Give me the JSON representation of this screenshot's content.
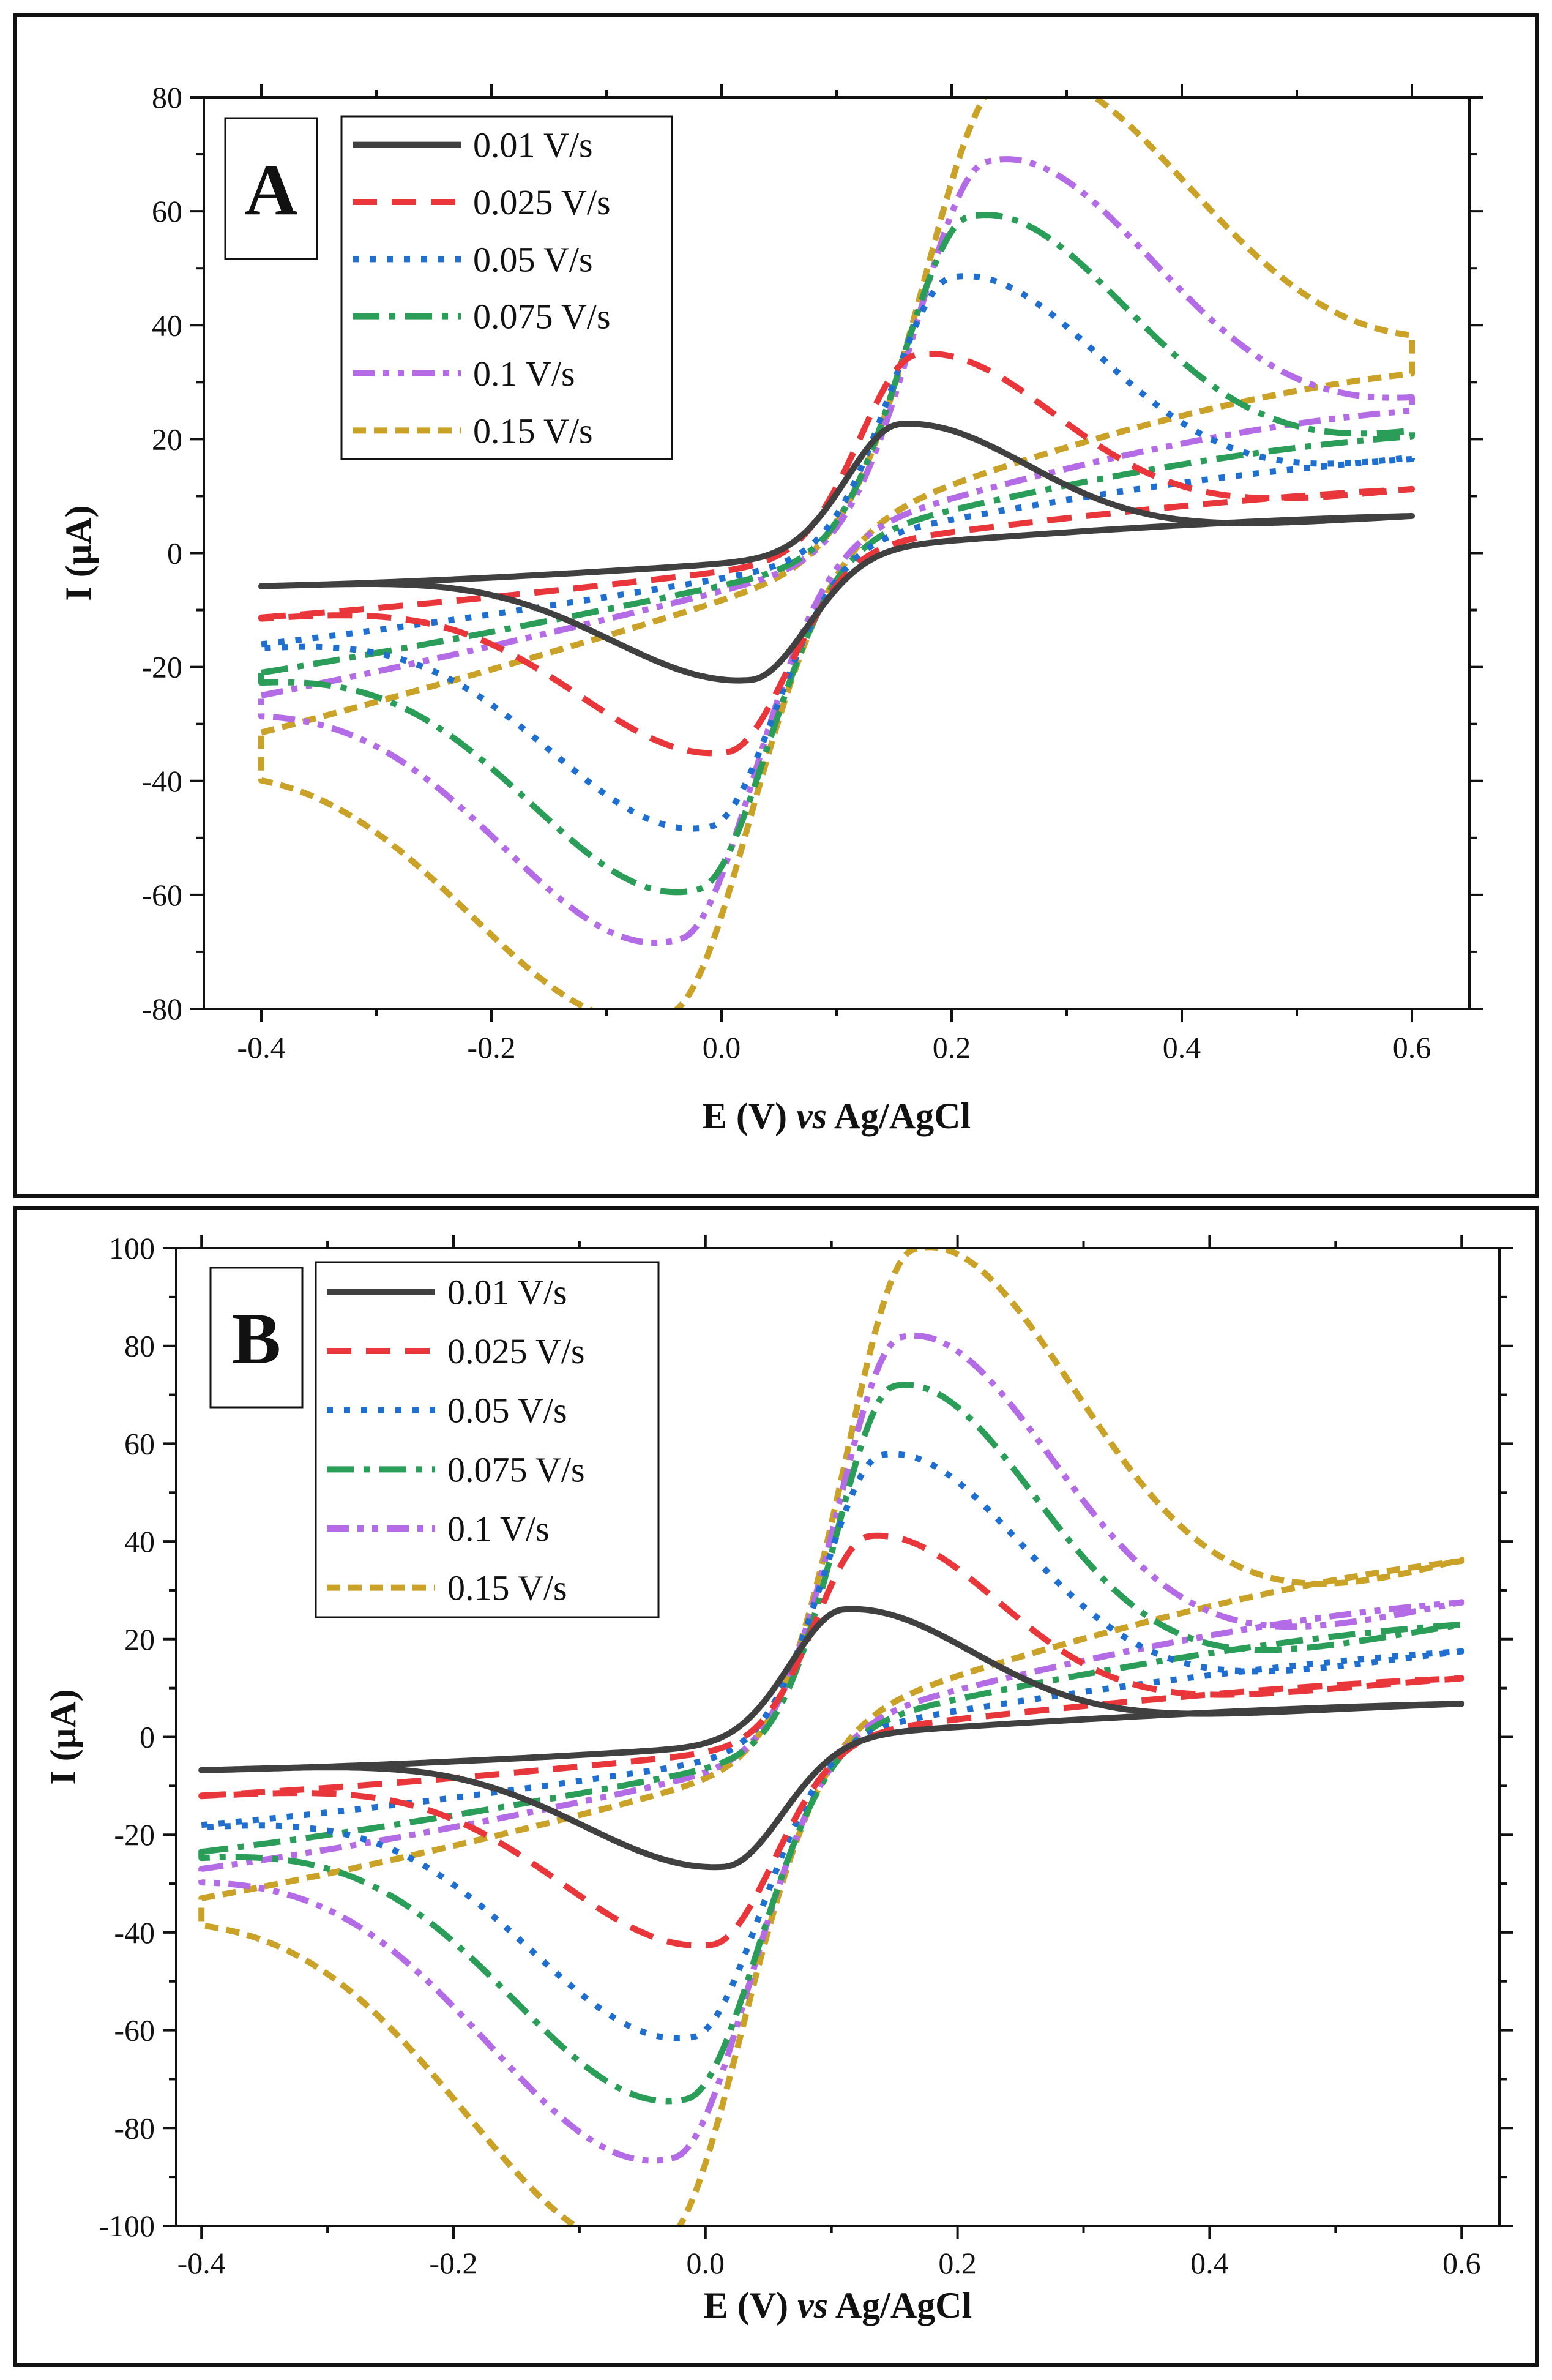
{
  "chart_data": [
    {
      "type": "line",
      "panel_label": "A",
      "xlabel": "E (V) vs Ag/AgCl",
      "xlabel_parts": [
        "E (V) ",
        "vs",
        " Ag/AgCl"
      ],
      "ylabel": "I (µA)",
      "xlim": [
        -0.45,
        0.65
      ],
      "ylim": [
        -80,
        80
      ],
      "xticks": [
        -0.4,
        -0.2,
        0.0,
        0.2,
        0.4,
        0.6
      ],
      "xtick_labels": [
        "-0.4",
        "-0.2",
        "0.0",
        "0.2",
        "0.4",
        "0.6"
      ],
      "yticks": [
        -80,
        -60,
        -40,
        -20,
        0,
        20,
        40,
        60,
        80
      ],
      "ytick_labels": [
        "-80",
        "-60",
        "-40",
        "-20",
        "0",
        "20",
        "40",
        "60",
        "80"
      ],
      "grid": false,
      "legend_position": "top-left",
      "series": [
        {
          "name": "0.01 V/s",
          "color": "#404040",
          "dash": "solid",
          "start": -5.8,
          "end": 6.5,
          "anodic": {
            "x": 0.155,
            "y": 22.3,
            "w": 0.065
          },
          "cathodic": {
            "x": 0.025,
            "y": -21.8,
            "w": 0.07
          },
          "fwd_base": [
            -5.8,
            -4.3,
            2.8,
            6.5
          ],
          "rev_base": [
            6.5,
            5.0,
            -3.4,
            -5.8
          ]
        },
        {
          "name": "0.025 V/s",
          "color": "#e8363a",
          "dash": "dash",
          "start": -11.3,
          "end": 11.2,
          "anodic": {
            "x": 0.17,
            "y": 34,
            "w": 0.07
          },
          "cathodic": {
            "x": 0.005,
            "y": -33.5,
            "w": 0.075
          },
          "fwd_base": [
            -11.3,
            -6.3,
            4.0,
            11.2
          ],
          "rev_base": [
            11.2,
            8.0,
            -5.0,
            -11.3
          ]
        },
        {
          "name": "0.05 V/s",
          "color": "#1f6fd1",
          "dash": "dot",
          "start": -16.0,
          "end": 16.5,
          "anodic": {
            "x": 0.2,
            "y": 46,
            "w": 0.075
          },
          "cathodic": {
            "x": -0.01,
            "y": -46,
            "w": 0.08
          },
          "fwd_base": [
            -16.0,
            -8.3,
            5.2,
            16.5
          ],
          "rev_base": [
            16.5,
            12.0,
            -6.3,
            -16.0
          ]
        },
        {
          "name": "0.075 V/s",
          "color": "#2a9d58",
          "dash": "dashdot",
          "start": -21.0,
          "end": 20.5,
          "anodic": {
            "x": 0.215,
            "y": 55.5,
            "w": 0.08
          },
          "cathodic": {
            "x": -0.02,
            "y": -56,
            "w": 0.085
          },
          "fwd_base": [
            -21.0,
            -10.0,
            6.2,
            20.5
          ],
          "rev_base": [
            20.5,
            15.5,
            -7.6,
            -21.0
          ]
        },
        {
          "name": "0.1 V/s",
          "color": "#b46be6",
          "dash": "dashdotdot",
          "start": -25.0,
          "end": 25.0,
          "anodic": {
            "x": 0.23,
            "y": 63.5,
            "w": 0.085
          },
          "cathodic": {
            "x": -0.035,
            "y": -63.5,
            "w": 0.09
          },
          "fwd_base": [
            -25.0,
            -11.5,
            7.2,
            25.0
          ],
          "rev_base": [
            25.0,
            19.5,
            -9.0,
            -25.0
          ]
        },
        {
          "name": "0.15 V/s",
          "color": "#c9a227",
          "dash": "shortdash",
          "start": -31.5,
          "end": 31.5,
          "anodic": {
            "x": 0.245,
            "y": 76,
            "w": 0.095
          },
          "cathodic": {
            "x": -0.045,
            "y": -75,
            "w": 0.1
          },
          "fwd_base": [
            -31.5,
            -14.0,
            8.5,
            31.5
          ],
          "rev_base": [
            31.5,
            24.0,
            -10.5,
            -31.5
          ]
        }
      ]
    },
    {
      "type": "line",
      "panel_label": "B",
      "xlabel": "E (V) vs Ag/AgCl",
      "xlabel_parts": [
        "E (V) ",
        "vs",
        " Ag/AgCl"
      ],
      "ylabel": "I (µA)",
      "xlim": [
        -0.42,
        0.63
      ],
      "ylim": [
        -100,
        100
      ],
      "xticks": [
        -0.4,
        -0.2,
        0.0,
        0.2,
        0.4,
        0.6
      ],
      "xtick_labels": [
        "-0.4",
        "-0.2",
        "0.0",
        "0.2",
        "0.4",
        "0.6"
      ],
      "yticks": [
        -100,
        -80,
        -60,
        -40,
        -20,
        0,
        20,
        40,
        60,
        80,
        100
      ],
      "ytick_labels": [
        "-100",
        "-80",
        "-60",
        "-40",
        "-20",
        "0",
        "20",
        "40",
        "60",
        "80",
        "100"
      ],
      "grid": false,
      "legend_position": "top-left",
      "series": [
        {
          "name": "0.01 V/s",
          "color": "#404040",
          "dash": "solid",
          "start": -6.8,
          "end": 6.8,
          "anodic": {
            "x": 0.11,
            "y": 26.5,
            "w": 0.06
          },
          "cathodic": {
            "x": 0.015,
            "y": -25.5,
            "w": 0.065
          },
          "fwd_base": [
            -6.8,
            -5.0,
            3.5,
            6.8
          ],
          "rev_base": [
            6.8,
            5.0,
            -4.0,
            -6.8
          ]
        },
        {
          "name": "0.025 V/s",
          "color": "#e8363a",
          "dash": "dash",
          "start": -12.0,
          "end": 12.0,
          "anodic": {
            "x": 0.13,
            "y": 41,
            "w": 0.06
          },
          "cathodic": {
            "x": 0.005,
            "y": -40.5,
            "w": 0.07
          },
          "fwd_base": [
            -12.0,
            -7.5,
            5.5,
            12.0
          ],
          "rev_base": [
            12.0,
            8.5,
            -6.5,
            -12.0
          ]
        },
        {
          "name": "0.05 V/s",
          "color": "#1f6fd1",
          "dash": "dot",
          "start": -18.0,
          "end": 17.5,
          "anodic": {
            "x": 0.14,
            "y": 57.5,
            "w": 0.065
          },
          "cathodic": {
            "x": -0.01,
            "y": -58,
            "w": 0.075
          },
          "fwd_base": [
            -18.0,
            -10.5,
            7.0,
            17.5
          ],
          "rev_base": [
            17.5,
            12.0,
            -8.5,
            -18.0
          ]
        },
        {
          "name": "0.075 V/s",
          "color": "#2a9d58",
          "dash": "dashdot",
          "start": -23.5,
          "end": 23.0,
          "anodic": {
            "x": 0.15,
            "y": 71,
            "w": 0.065
          },
          "cathodic": {
            "x": -0.015,
            "y": -70,
            "w": 0.08
          },
          "fwd_base": [
            -23.5,
            -13.0,
            8.5,
            23.0
          ],
          "rev_base": [
            23.0,
            17.0,
            -10.5,
            -23.5
          ]
        },
        {
          "name": "0.1 V/s",
          "color": "#b46be6",
          "dash": "dashdotdot",
          "start": -27.0,
          "end": 27.5,
          "anodic": {
            "x": 0.155,
            "y": 80.5,
            "w": 0.07
          },
          "cathodic": {
            "x": -0.025,
            "y": -81,
            "w": 0.085
          },
          "fwd_base": [
            -27.0,
            -15.0,
            9.5,
            27.5
          ],
          "rev_base": [
            27.5,
            21.0,
            -12.5,
            -27.0
          ]
        },
        {
          "name": "0.15 V/s",
          "color": "#c9a227",
          "dash": "shortdash",
          "start": -33.0,
          "end": 36.0,
          "anodic": {
            "x": 0.165,
            "y": 97,
            "w": 0.075
          },
          "cathodic": {
            "x": -0.035,
            "y": -97,
            "w": 0.09
          },
          "fwd_base": [
            -33.0,
            -17.5,
            11.0,
            36.0
          ],
          "rev_base": [
            36.0,
            26.0,
            -15.0,
            -33.0
          ]
        }
      ]
    }
  ]
}
